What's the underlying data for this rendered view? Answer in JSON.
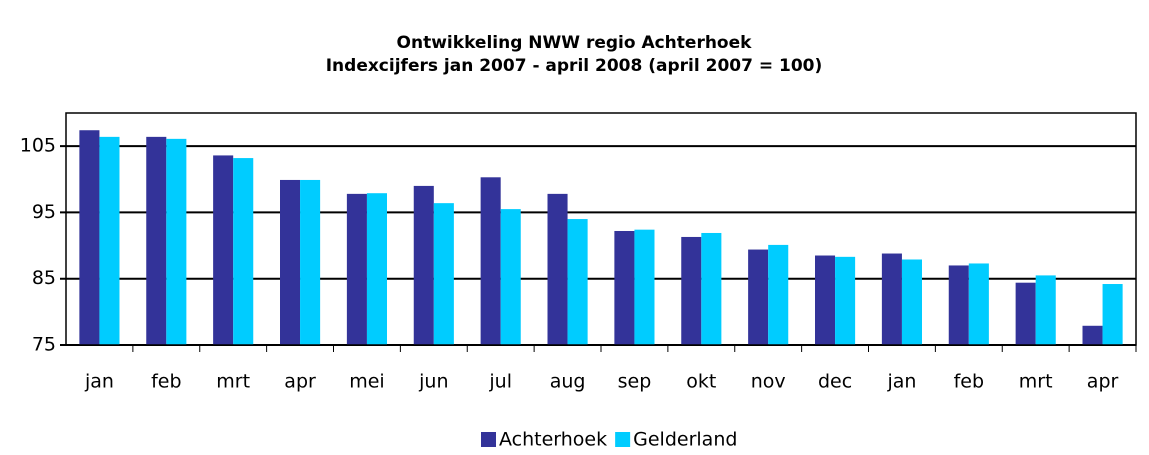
{
  "chart_data": {
    "type": "bar",
    "title": "Ontwikkeling NWW regio Achterhoek",
    "subtitle": "Indexcijfers jan 2007 - april 2008 (april 2007 = 100)",
    "categories": [
      "jan",
      "feb",
      "mrt",
      "apr",
      "mei",
      "jun",
      "jul",
      "aug",
      "sep",
      "okt",
      "nov",
      "dec",
      "jan",
      "feb",
      "mrt",
      "apr"
    ],
    "series": [
      {
        "name": "Achterhoek",
        "color": "#333399",
        "values": [
          107.4,
          106.4,
          103.6,
          99.9,
          97.8,
          99.0,
          100.3,
          97.8,
          92.2,
          91.3,
          89.4,
          88.5,
          88.8,
          87.0,
          84.4,
          77.9
        ]
      },
      {
        "name": "Gelderland",
        "color": "#00ccff",
        "values": [
          106.4,
          106.1,
          103.2,
          99.9,
          97.9,
          96.4,
          95.5,
          94.0,
          92.4,
          91.9,
          90.1,
          88.3,
          87.9,
          87.3,
          85.5,
          84.2
        ]
      }
    ],
    "ylim": [
      75,
      110
    ],
    "yticks": [
      75,
      85,
      95,
      105
    ],
    "grid": true
  }
}
